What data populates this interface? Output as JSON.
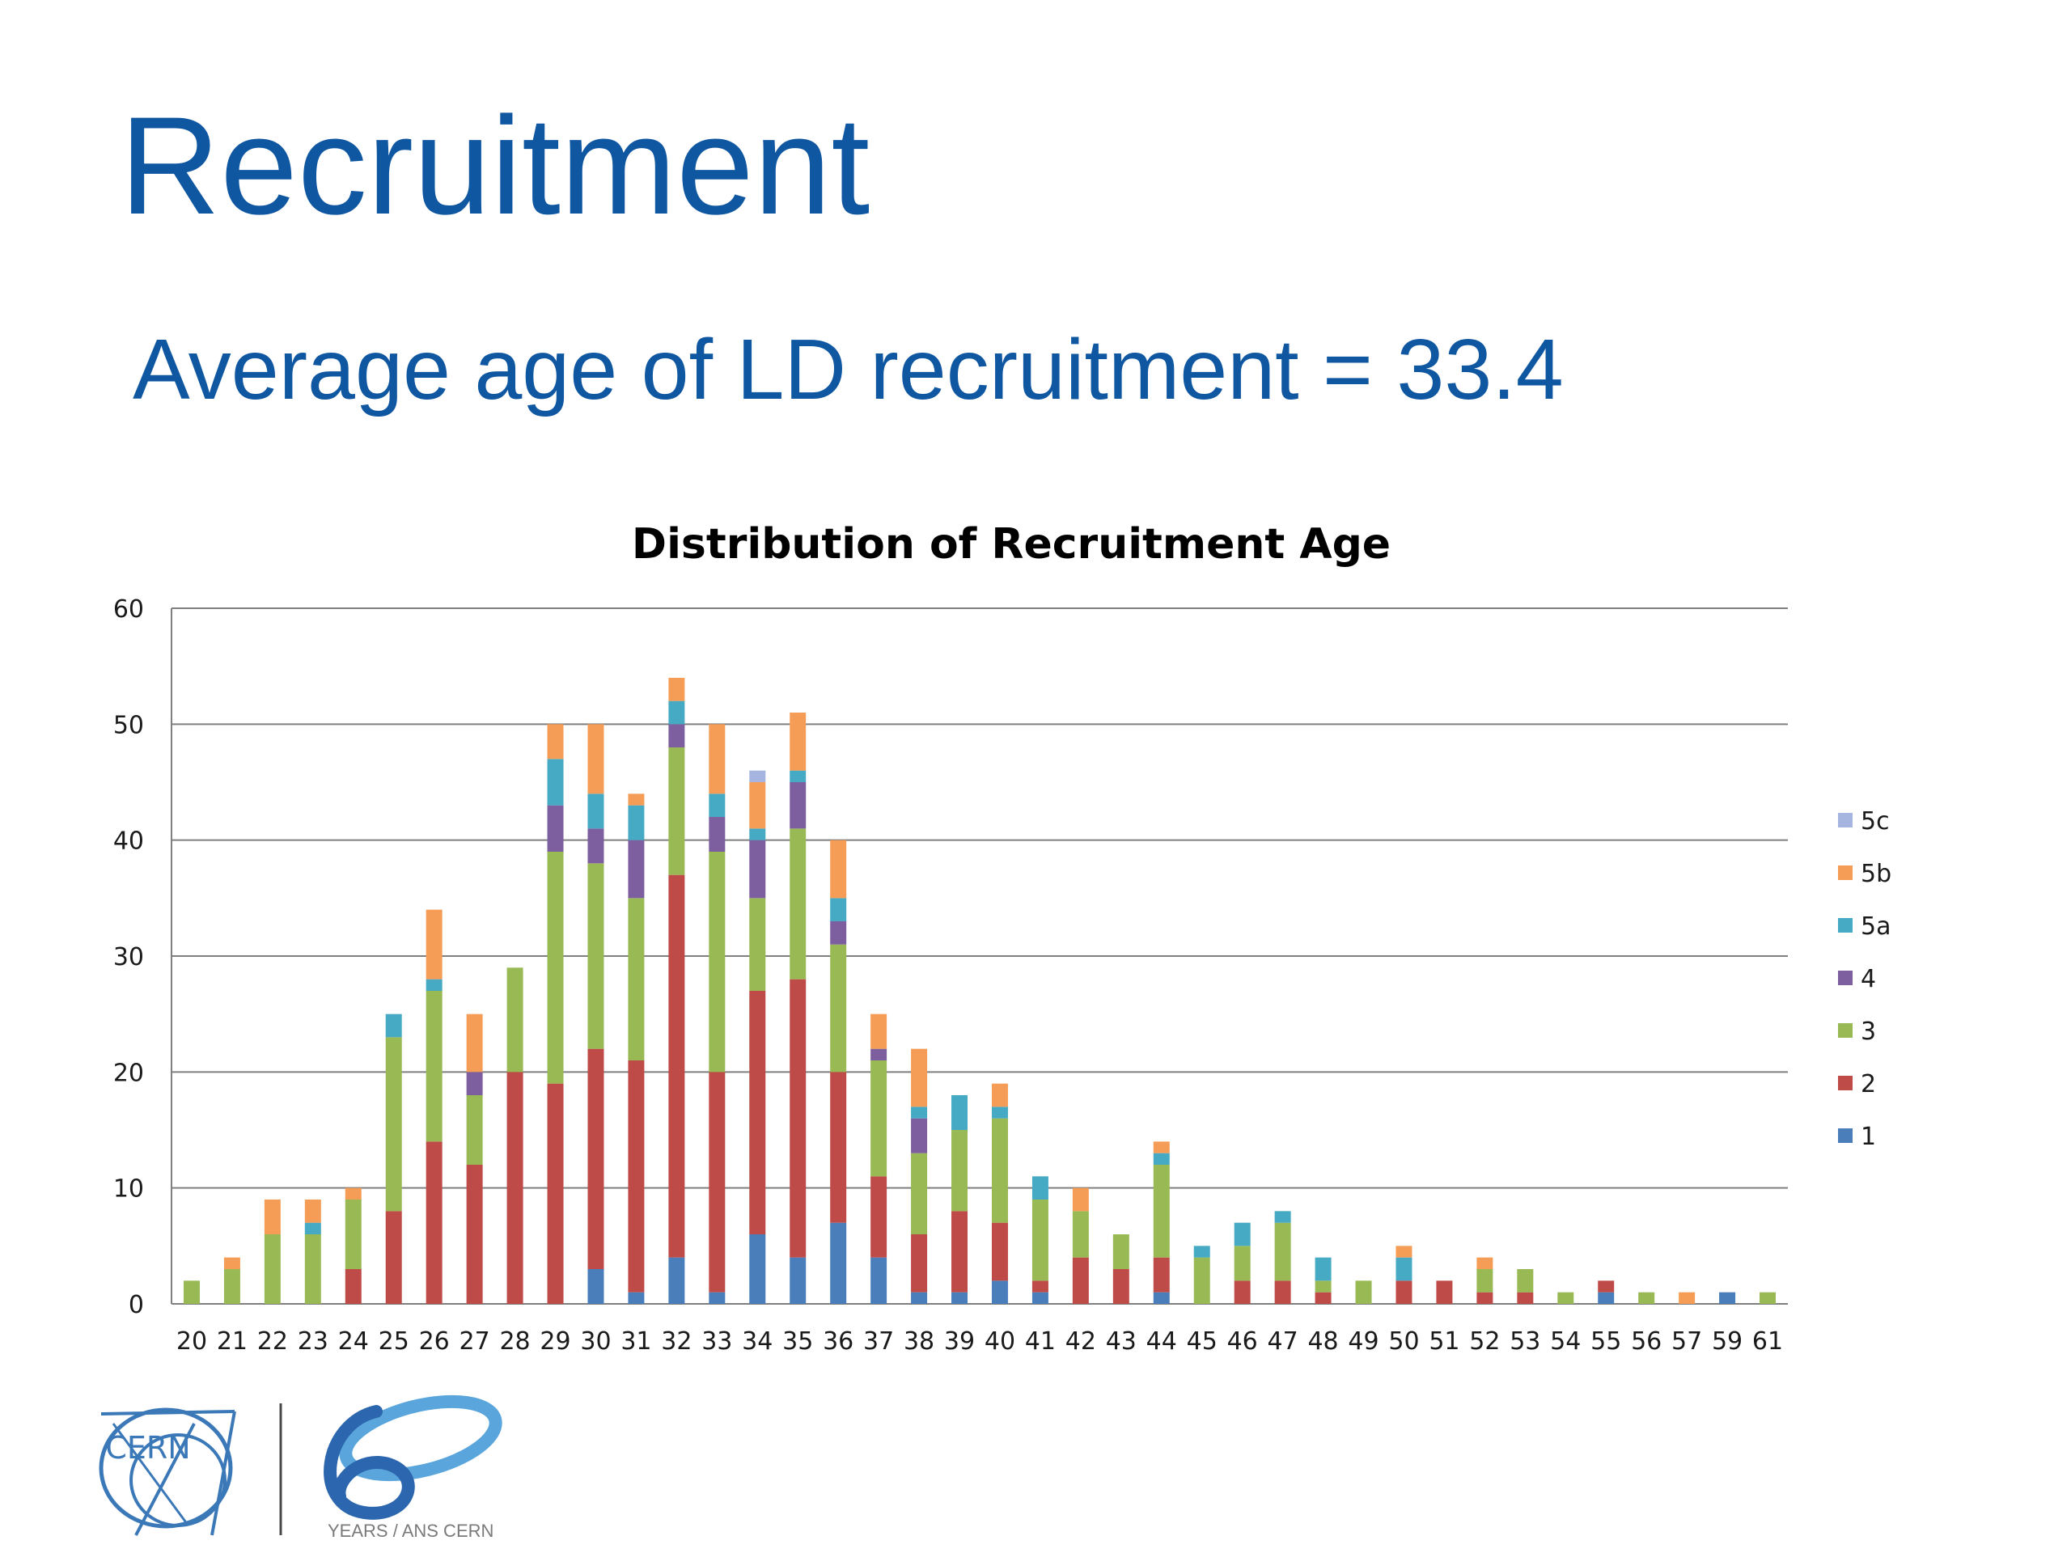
{
  "slide": {
    "title": "Recruitment",
    "subtitle": "Average age of LD recruitment = 33.4"
  },
  "chart_data": {
    "type": "bar",
    "stacked": true,
    "title": "Distribution of Recruitment Age",
    "xlabel": "",
    "ylabel": "",
    "ylim": [
      0,
      60
    ],
    "yticks": [
      0,
      10,
      20,
      30,
      40,
      50,
      60
    ],
    "grid": true,
    "legend_position": "right",
    "categories": [
      "20",
      "21",
      "22",
      "23",
      "24",
      "25",
      "26",
      "27",
      "28",
      "29",
      "30",
      "31",
      "32",
      "33",
      "34",
      "35",
      "36",
      "37",
      "38",
      "39",
      "40",
      "41",
      "42",
      "43",
      "44",
      "45",
      "46",
      "47",
      "48",
      "49",
      "50",
      "51",
      "52",
      "53",
      "54",
      "55",
      "56",
      "57",
      "59",
      "61"
    ],
    "series": [
      {
        "name": "1",
        "color": "#4a7ebb",
        "values": [
          0,
          0,
          0,
          0,
          0,
          0,
          0,
          0,
          0,
          0,
          3,
          1,
          4,
          1,
          6,
          4,
          7,
          4,
          1,
          1,
          2,
          1,
          0,
          0,
          1,
          0,
          0,
          0,
          0,
          0,
          0,
          0,
          0,
          0,
          0,
          1,
          0,
          0,
          1,
          0
        ]
      },
      {
        "name": "2",
        "color": "#be4b48",
        "values": [
          0,
          0,
          0,
          0,
          3,
          8,
          14,
          12,
          20,
          19,
          19,
          20,
          33,
          19,
          21,
          24,
          13,
          7,
          5,
          7,
          5,
          1,
          4,
          3,
          3,
          0,
          2,
          2,
          1,
          0,
          2,
          2,
          1,
          1,
          0,
          1,
          0,
          0,
          0,
          0
        ]
      },
      {
        "name": "3",
        "color": "#98b954",
        "values": [
          2,
          3,
          6,
          6,
          6,
          15,
          13,
          6,
          9,
          20,
          16,
          14,
          11,
          19,
          8,
          13,
          11,
          10,
          7,
          7,
          9,
          7,
          4,
          3,
          8,
          4,
          3,
          5,
          1,
          2,
          0,
          0,
          2,
          2,
          1,
          0,
          1,
          0,
          0,
          1
        ]
      },
      {
        "name": "4",
        "color": "#7d5fa0",
        "values": [
          0,
          0,
          0,
          0,
          0,
          0,
          0,
          2,
          0,
          4,
          3,
          5,
          2,
          3,
          5,
          4,
          2,
          1,
          3,
          0,
          0,
          0,
          0,
          0,
          0,
          0,
          0,
          0,
          0,
          0,
          0,
          0,
          0,
          0,
          0,
          0,
          0,
          0,
          0,
          0
        ]
      },
      {
        "name": "5a",
        "color": "#46aac5",
        "values": [
          0,
          0,
          0,
          1,
          0,
          2,
          1,
          0,
          0,
          4,
          3,
          3,
          2,
          2,
          1,
          1,
          2,
          0,
          1,
          3,
          1,
          2,
          0,
          0,
          1,
          1,
          2,
          1,
          2,
          0,
          2,
          0,
          0,
          0,
          0,
          0,
          0,
          0,
          0,
          0
        ]
      },
      {
        "name": "5b",
        "color": "#f59d56",
        "values": [
          0,
          1,
          3,
          2,
          1,
          0,
          6,
          5,
          0,
          3,
          6,
          1,
          2,
          6,
          4,
          5,
          5,
          3,
          5,
          0,
          2,
          0,
          2,
          0,
          1,
          0,
          0,
          0,
          0,
          0,
          1,
          0,
          1,
          0,
          0,
          0,
          0,
          1,
          0,
          0
        ]
      },
      {
        "name": "5c",
        "color": "#a5b5e0",
        "values": [
          0,
          0,
          0,
          0,
          0,
          0,
          0,
          0,
          0,
          0,
          0,
          0,
          0,
          0,
          1,
          0,
          0,
          0,
          0,
          0,
          0,
          0,
          0,
          0,
          0,
          0,
          0,
          0,
          0,
          0,
          0,
          0,
          0,
          0,
          0,
          0,
          0,
          0,
          0,
          0
        ]
      }
    ],
    "legend_order": [
      "5c",
      "5b",
      "5a",
      "4",
      "3",
      "2",
      "1"
    ]
  },
  "logos": {
    "cern_text": "CERN",
    "sixty_text": "YEARS / ANS CERN",
    "colors": {
      "cern": "#3b78b8",
      "sixty_blue": "#2b66ae",
      "sixty_light": "#5aa6dc",
      "sixty_text": "#7a7a7a"
    }
  },
  "colors": {
    "title": "#1057a2",
    "axis_text": "#1a1a1a",
    "gridline": "#7f7f7f"
  }
}
